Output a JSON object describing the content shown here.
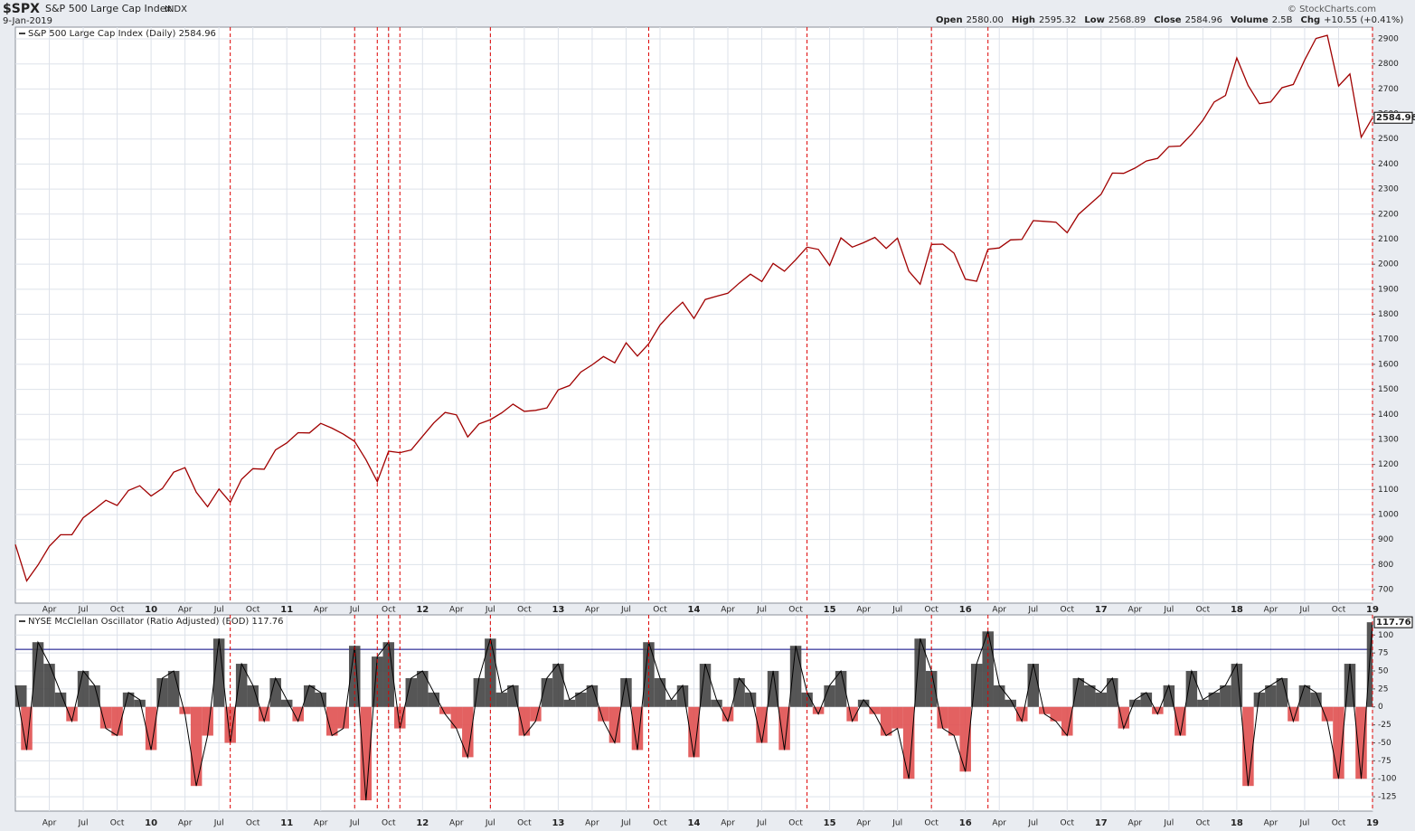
{
  "header": {
    "symbol": "$SPX",
    "name": "S&P 500 Large Cap Index",
    "exchange": "INDX",
    "date": "9-Jan-2019",
    "copyright": "© StockCharts.com",
    "quote": [
      {
        "label": "Open",
        "value": "2580.00"
      },
      {
        "label": "High",
        "value": "2595.32"
      },
      {
        "label": "Low",
        "value": "2568.89"
      },
      {
        "label": "Close",
        "value": "2584.96"
      },
      {
        "label": "Volume",
        "value": "2.5B"
      },
      {
        "label": "Chg",
        "value": "+10.55 (+0.41%)"
      }
    ]
  },
  "signal_dates": [
    "2010-08",
    "2011-07",
    "2011-09",
    "2011-10",
    "2011-11",
    "2012-07",
    "2013-09",
    "2014-11",
    "2015-10",
    "2016-03",
    "2019-01"
  ],
  "signal_color": "#dd0000",
  "chart_data": [
    {
      "type": "line",
      "title": "S&P 500 Large Cap Index (Daily) 2584.96",
      "color": "#a00000",
      "last_label": "2584.96",
      "xlim": [
        "2009-01",
        "2019-01"
      ],
      "ylim": [
        646,
        2947
      ],
      "yticks": [
        700,
        800,
        900,
        1000,
        1100,
        1200,
        1300,
        1400,
        1500,
        1600,
        1700,
        1800,
        1900,
        2000,
        2100,
        2200,
        2300,
        2400,
        2500,
        2600,
        2700,
        2800,
        2900
      ],
      "grid": true,
      "x": [
        "2009-01",
        "2009-02",
        "2009-03",
        "2009-04",
        "2009-05",
        "2009-06",
        "2009-07",
        "2009-08",
        "2009-09",
        "2009-10",
        "2009-11",
        "2009-12",
        "2010-01",
        "2010-02",
        "2010-03",
        "2010-04",
        "2010-05",
        "2010-06",
        "2010-07",
        "2010-08",
        "2010-09",
        "2010-10",
        "2010-11",
        "2010-12",
        "2011-01",
        "2011-02",
        "2011-03",
        "2011-04",
        "2011-05",
        "2011-06",
        "2011-07",
        "2011-08",
        "2011-09",
        "2011-10",
        "2011-11",
        "2011-12",
        "2012-01",
        "2012-02",
        "2012-03",
        "2012-04",
        "2012-05",
        "2012-06",
        "2012-07",
        "2012-08",
        "2012-09",
        "2012-10",
        "2012-11",
        "2012-12",
        "2013-01",
        "2013-02",
        "2013-03",
        "2013-04",
        "2013-05",
        "2013-06",
        "2013-07",
        "2013-08",
        "2013-09",
        "2013-10",
        "2013-11",
        "2013-12",
        "2014-01",
        "2014-02",
        "2014-03",
        "2014-04",
        "2014-05",
        "2014-06",
        "2014-07",
        "2014-08",
        "2014-09",
        "2014-10",
        "2014-11",
        "2014-12",
        "2015-01",
        "2015-02",
        "2015-03",
        "2015-04",
        "2015-05",
        "2015-06",
        "2015-07",
        "2015-08",
        "2015-09",
        "2015-10",
        "2015-11",
        "2015-12",
        "2016-01",
        "2016-02",
        "2016-03",
        "2016-04",
        "2016-05",
        "2016-06",
        "2016-07",
        "2016-08",
        "2016-09",
        "2016-10",
        "2016-11",
        "2016-12",
        "2017-01",
        "2017-02",
        "2017-03",
        "2017-04",
        "2017-05",
        "2017-06",
        "2017-07",
        "2017-08",
        "2017-09",
        "2017-10",
        "2017-11",
        "2017-12",
        "2018-01",
        "2018-02",
        "2018-03",
        "2018-04",
        "2018-05",
        "2018-06",
        "2018-07",
        "2018-08",
        "2018-09",
        "2018-10",
        "2018-11",
        "2018-12",
        "2019-01"
      ],
      "values": [
        880,
        735,
        798,
        873,
        919,
        919,
        987,
        1021,
        1057,
        1036,
        1096,
        1115,
        1074,
        1104,
        1169,
        1187,
        1089,
        1031,
        1102,
        1049,
        1141,
        1183,
        1181,
        1258,
        1286,
        1327,
        1326,
        1364,
        1345,
        1321,
        1292,
        1219,
        1131,
        1253,
        1247,
        1258,
        1312,
        1366,
        1408,
        1398,
        1310,
        1362,
        1379,
        1406,
        1441,
        1412,
        1416,
        1426,
        1498,
        1515,
        1569,
        1598,
        1631,
        1606,
        1686,
        1633,
        1682,
        1757,
        1806,
        1848,
        1783,
        1859,
        1872,
        1884,
        1924,
        1960,
        1931,
        2003,
        1972,
        2018,
        2068,
        2059,
        1995,
        2105,
        2068,
        2086,
        2107,
        2063,
        2104,
        1972,
        1920,
        2079,
        2080,
        2044,
        1940,
        1932,
        2060,
        2065,
        2097,
        2099,
        2174,
        2171,
        2168,
        2126,
        2199,
        2239,
        2279,
        2364,
        2363,
        2384,
        2412,
        2423,
        2470,
        2472,
        2519,
        2575,
        2648,
        2674,
        2824,
        2714,
        2641,
        2648,
        2705,
        2718,
        2816,
        2902,
        2914,
        2712,
        2760,
        2507,
        2584.96
      ],
      "xticks": [
        {
          "value": "2009-04",
          "label": "Apr"
        },
        {
          "value": "2009-07",
          "label": "Jul"
        },
        {
          "value": "2009-10",
          "label": "Oct"
        },
        {
          "value": "2010-01",
          "label": "10"
        },
        {
          "value": "2010-04",
          "label": "Apr"
        },
        {
          "value": "2010-07",
          "label": "Jul"
        },
        {
          "value": "2010-10",
          "label": "Oct"
        },
        {
          "value": "2011-01",
          "label": "11"
        },
        {
          "value": "2011-04",
          "label": "Apr"
        },
        {
          "value": "2011-07",
          "label": "Jul"
        },
        {
          "value": "2011-10",
          "label": "Oct"
        },
        {
          "value": "2012-01",
          "label": "12"
        },
        {
          "value": "2012-04",
          "label": "Apr"
        },
        {
          "value": "2012-07",
          "label": "Jul"
        },
        {
          "value": "2012-10",
          "label": "Oct"
        },
        {
          "value": "2013-01",
          "label": "13"
        },
        {
          "value": "2013-04",
          "label": "Apr"
        },
        {
          "value": "2013-07",
          "label": "Jul"
        },
        {
          "value": "2013-10",
          "label": "Oct"
        },
        {
          "value": "2014-01",
          "label": "14"
        },
        {
          "value": "2014-04",
          "label": "Apr"
        },
        {
          "value": "2014-07",
          "label": "Jul"
        },
        {
          "value": "2014-10",
          "label": "Oct"
        },
        {
          "value": "2015-01",
          "label": "15"
        },
        {
          "value": "2015-04",
          "label": "Apr"
        },
        {
          "value": "2015-07",
          "label": "Jul"
        },
        {
          "value": "2015-10",
          "label": "Oct"
        },
        {
          "value": "2016-01",
          "label": "16"
        },
        {
          "value": "2016-04",
          "label": "Apr"
        },
        {
          "value": "2016-07",
          "label": "Jul"
        },
        {
          "value": "2016-10",
          "label": "Oct"
        },
        {
          "value": "2017-01",
          "label": "17"
        },
        {
          "value": "2017-04",
          "label": "Apr"
        },
        {
          "value": "2017-07",
          "label": "Jul"
        },
        {
          "value": "2017-10",
          "label": "Oct"
        },
        {
          "value": "2018-01",
          "label": "18"
        },
        {
          "value": "2018-04",
          "label": "Apr"
        },
        {
          "value": "2018-07",
          "label": "Jul"
        },
        {
          "value": "2018-10",
          "label": "Oct"
        },
        {
          "value": "2019-01",
          "label": "19"
        }
      ]
    },
    {
      "type": "area",
      "title": "NYSE McClellan Oscillator (Ratio Adjusted) (EOD) 117.76",
      "color": "#444444",
      "negative_color": "#e05050",
      "line_color": "#000000",
      "last_label": "117.76",
      "hline": 80,
      "hline_color": "#000080",
      "xlim": [
        "2009-01",
        "2019-01"
      ],
      "ylim": [
        -145,
        128
      ],
      "yticks": [
        -125,
        -100,
        -75,
        -50,
        -25,
        0,
        25,
        50,
        75,
        100
      ],
      "grid": true,
      "x": [
        "2009-01",
        "2009-02",
        "2009-03",
        "2009-04",
        "2009-05",
        "2009-06",
        "2009-07",
        "2009-08",
        "2009-09",
        "2009-10",
        "2009-11",
        "2009-12",
        "2010-01",
        "2010-02",
        "2010-03",
        "2010-04",
        "2010-05",
        "2010-06",
        "2010-07",
        "2010-08",
        "2010-09",
        "2010-10",
        "2010-11",
        "2010-12",
        "2011-01",
        "2011-02",
        "2011-03",
        "2011-04",
        "2011-05",
        "2011-06",
        "2011-07",
        "2011-08",
        "2011-09",
        "2011-10",
        "2011-11",
        "2011-12",
        "2012-01",
        "2012-02",
        "2012-03",
        "2012-04",
        "2012-05",
        "2012-06",
        "2012-07",
        "2012-08",
        "2012-09",
        "2012-10",
        "2012-11",
        "2012-12",
        "2013-01",
        "2013-02",
        "2013-03",
        "2013-04",
        "2013-05",
        "2013-06",
        "2013-07",
        "2013-08",
        "2013-09",
        "2013-10",
        "2013-11",
        "2013-12",
        "2014-01",
        "2014-02",
        "2014-03",
        "2014-04",
        "2014-05",
        "2014-06",
        "2014-07",
        "2014-08",
        "2014-09",
        "2014-10",
        "2014-11",
        "2014-12",
        "2015-01",
        "2015-02",
        "2015-03",
        "2015-04",
        "2015-05",
        "2015-06",
        "2015-07",
        "2015-08",
        "2015-09",
        "2015-10",
        "2015-11",
        "2015-12",
        "2016-01",
        "2016-02",
        "2016-03",
        "2016-04",
        "2016-05",
        "2016-06",
        "2016-07",
        "2016-08",
        "2016-09",
        "2016-10",
        "2016-11",
        "2016-12",
        "2017-01",
        "2017-02",
        "2017-03",
        "2017-04",
        "2017-05",
        "2017-06",
        "2017-07",
        "2017-08",
        "2017-09",
        "2017-10",
        "2017-11",
        "2017-12",
        "2018-01",
        "2018-02",
        "2018-03",
        "2018-04",
        "2018-05",
        "2018-06",
        "2018-07",
        "2018-08",
        "2018-09",
        "2018-10",
        "2018-11",
        "2018-12",
        "2019-01"
      ],
      "values": [
        30,
        -60,
        90,
        60,
        20,
        -20,
        50,
        30,
        -30,
        -40,
        20,
        10,
        -60,
        40,
        50,
        -10,
        -110,
        -40,
        95,
        -50,
        60,
        30,
        -20,
        40,
        10,
        -20,
        30,
        20,
        -40,
        -30,
        85,
        -130,
        70,
        90,
        -30,
        40,
        50,
        20,
        -10,
        -30,
        -70,
        40,
        95,
        20,
        30,
        -40,
        -20,
        40,
        60,
        10,
        20,
        30,
        -20,
        -50,
        40,
        -60,
        90,
        40,
        10,
        30,
        -70,
        60,
        10,
        -20,
        40,
        20,
        -50,
        50,
        -60,
        85,
        20,
        -10,
        30,
        50,
        -20,
        10,
        -10,
        -40,
        -30,
        -100,
        95,
        50,
        -30,
        -40,
        -90,
        60,
        105,
        30,
        10,
        -20,
        60,
        -10,
        -20,
        -40,
        40,
        30,
        20,
        40,
        -30,
        10,
        20,
        -10,
        30,
        -40,
        50,
        10,
        20,
        30,
        60,
        -110,
        20,
        30,
        40,
        -20,
        30,
        20,
        -20,
        -100,
        60,
        -100,
        117.76
      ],
      "xticks": [
        {
          "value": "2009-04",
          "label": "Apr"
        },
        {
          "value": "2009-07",
          "label": "Jul"
        },
        {
          "value": "2009-10",
          "label": "Oct"
        },
        {
          "value": "2010-01",
          "label": "10"
        },
        {
          "value": "2010-04",
          "label": "Apr"
        },
        {
          "value": "2010-07",
          "label": "Jul"
        },
        {
          "value": "2010-10",
          "label": "Oct"
        },
        {
          "value": "2011-01",
          "label": "11"
        },
        {
          "value": "2011-04",
          "label": "Apr"
        },
        {
          "value": "2011-07",
          "label": "Jul"
        },
        {
          "value": "2011-10",
          "label": "Oct"
        },
        {
          "value": "2012-01",
          "label": "12"
        },
        {
          "value": "2012-04",
          "label": "Apr"
        },
        {
          "value": "2012-07",
          "label": "Jul"
        },
        {
          "value": "2012-10",
          "label": "Oct"
        },
        {
          "value": "2013-01",
          "label": "13"
        },
        {
          "value": "2013-04",
          "label": "Apr"
        },
        {
          "value": "2013-07",
          "label": "Jul"
        },
        {
          "value": "2013-10",
          "label": "Oct"
        },
        {
          "value": "2014-01",
          "label": "14"
        },
        {
          "value": "2014-04",
          "label": "Apr"
        },
        {
          "value": "2014-07",
          "label": "Jul"
        },
        {
          "value": "2014-10",
          "label": "Oct"
        },
        {
          "value": "2015-01",
          "label": "15"
        },
        {
          "value": "2015-04",
          "label": "Apr"
        },
        {
          "value": "2015-07",
          "label": "Jul"
        },
        {
          "value": "2015-10",
          "label": "Oct"
        },
        {
          "value": "2016-01",
          "label": "16"
        },
        {
          "value": "2016-04",
          "label": "Apr"
        },
        {
          "value": "2016-07",
          "label": "Jul"
        },
        {
          "value": "2016-10",
          "label": "Oct"
        },
        {
          "value": "2017-01",
          "label": "17"
        },
        {
          "value": "2017-04",
          "label": "Apr"
        },
        {
          "value": "2017-07",
          "label": "Jul"
        },
        {
          "value": "2017-10",
          "label": "Oct"
        },
        {
          "value": "2018-01",
          "label": "18"
        },
        {
          "value": "2018-04",
          "label": "Apr"
        },
        {
          "value": "2018-07",
          "label": "Jul"
        },
        {
          "value": "2018-10",
          "label": "Oct"
        },
        {
          "value": "2019-01",
          "label": "19"
        }
      ]
    }
  ]
}
